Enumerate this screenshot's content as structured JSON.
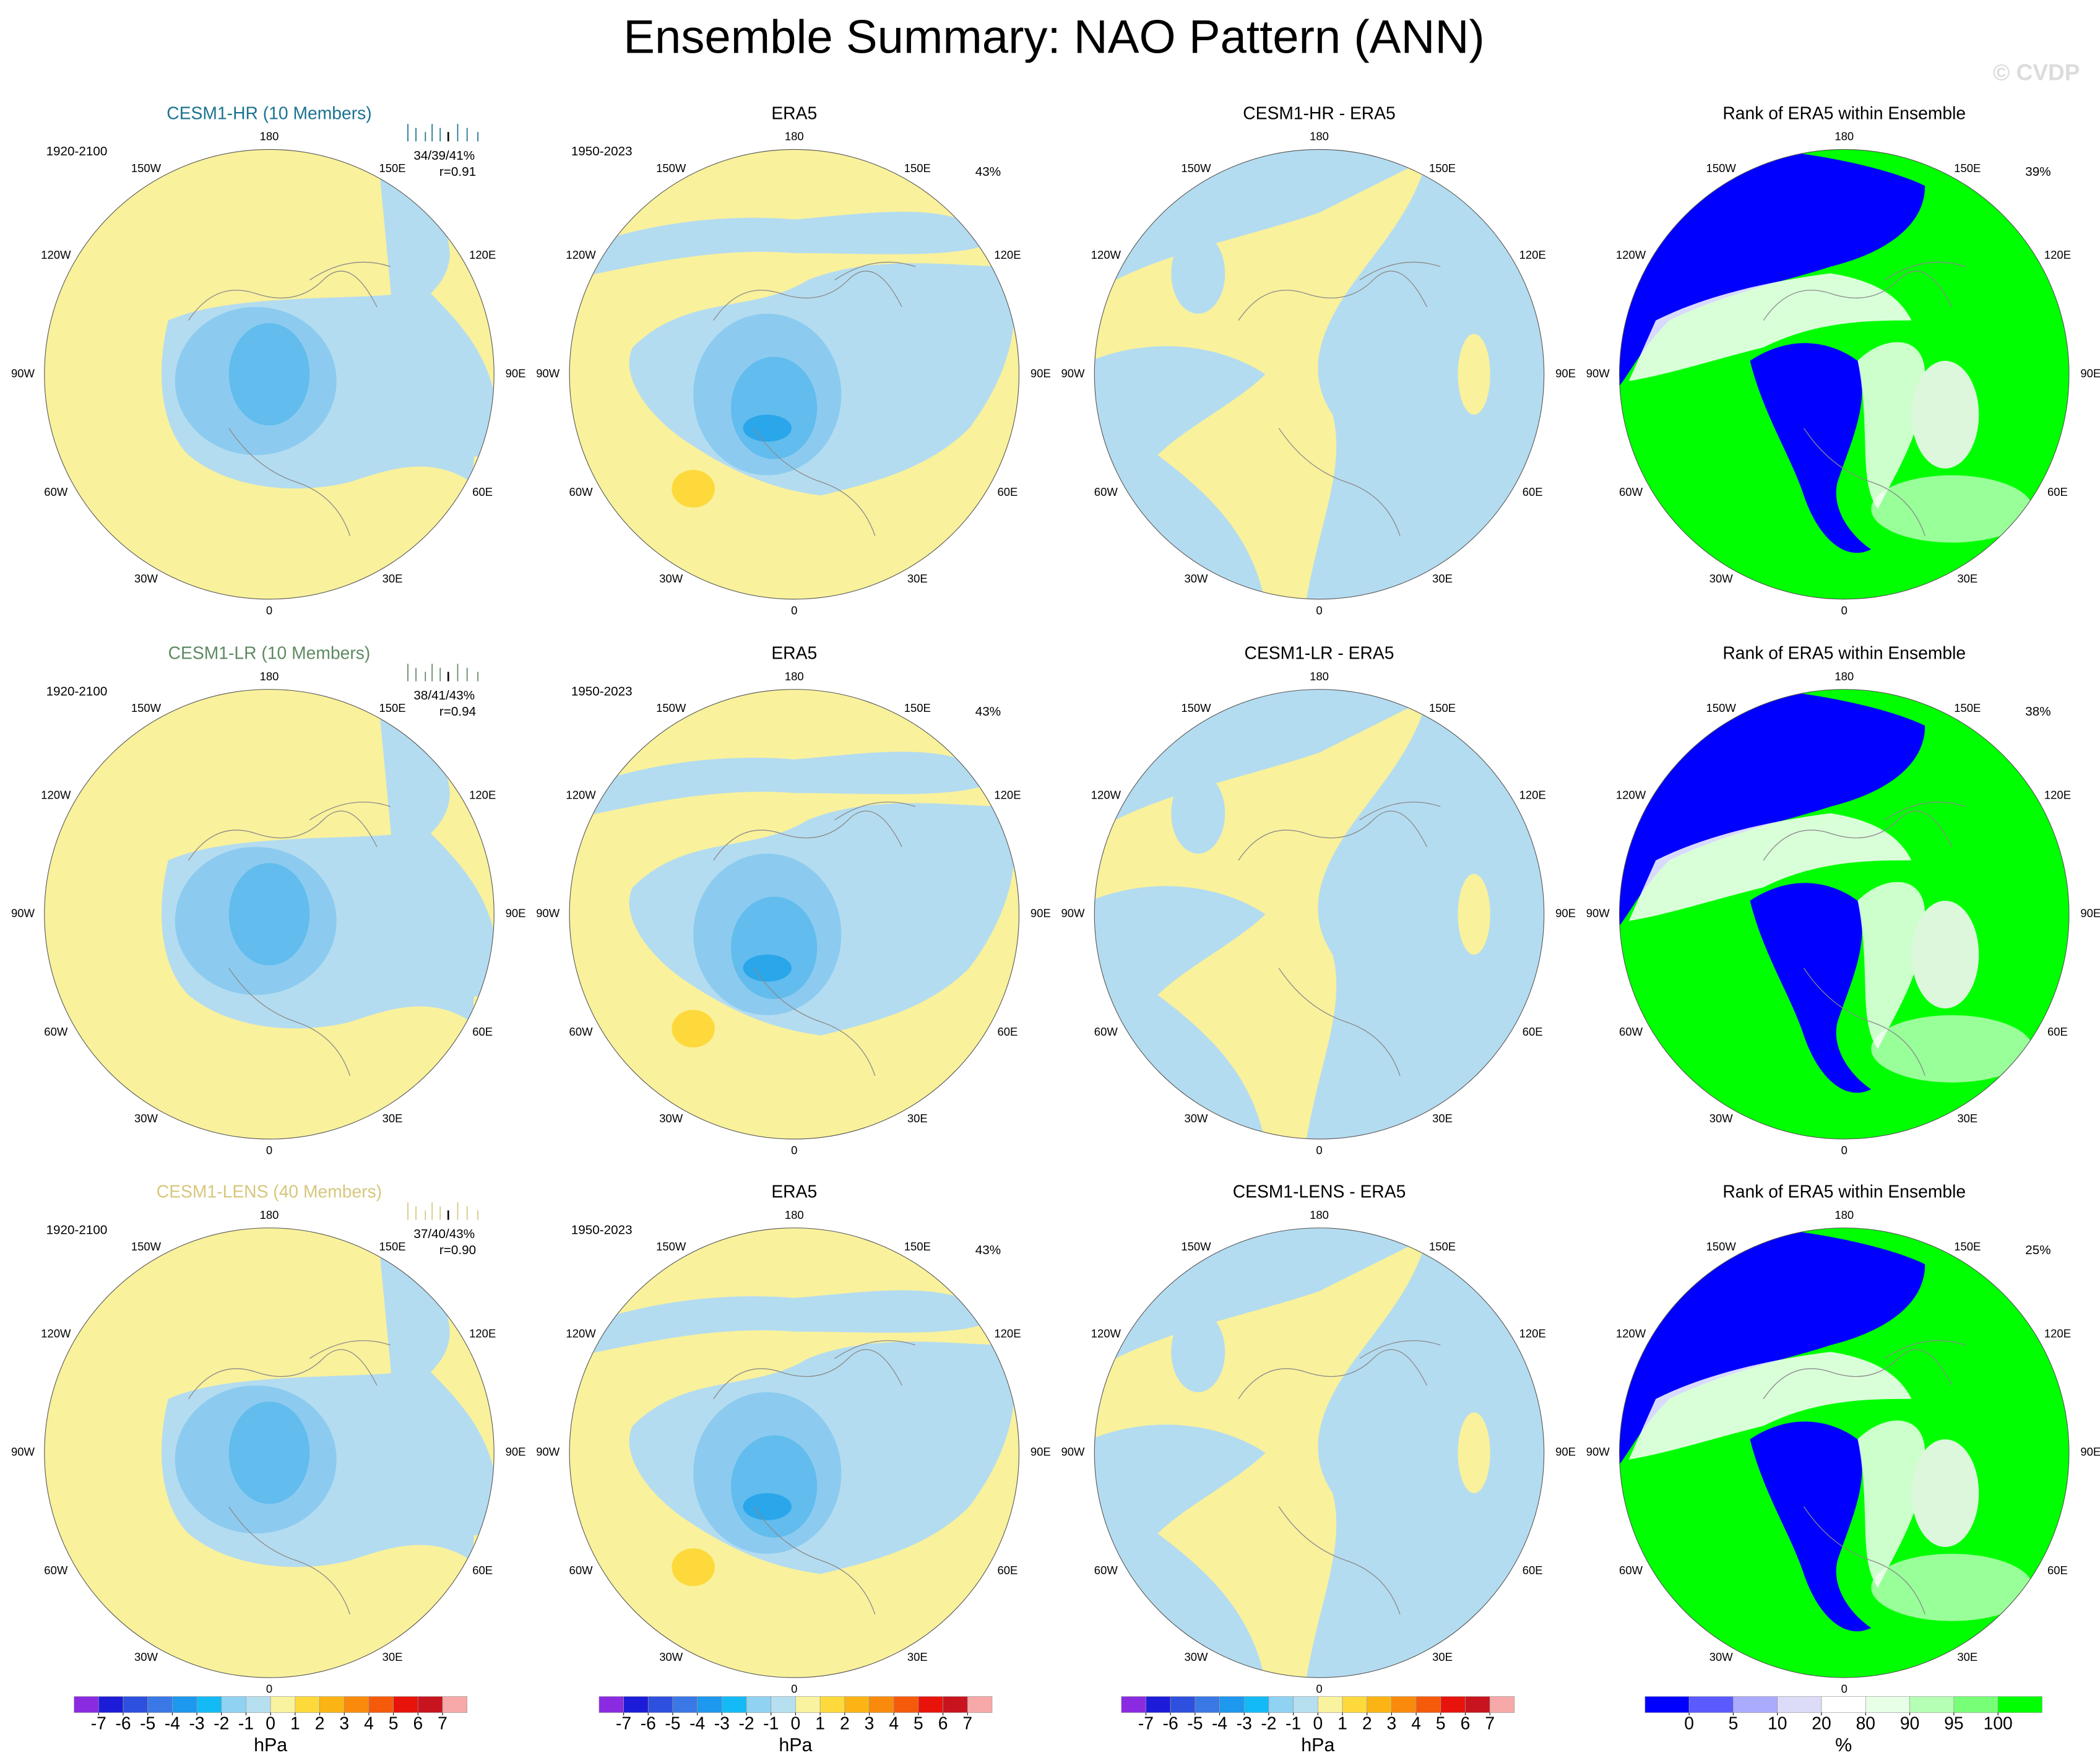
{
  "title": "Ensemble Summary: NAO Pattern (ANN)",
  "watermark": "© CVDP",
  "lon_labels": [
    "180",
    "150E",
    "120E",
    "90E",
    "60E",
    "30E",
    "0",
    "30W",
    "60W",
    "90W",
    "120W",
    "150W"
  ],
  "rows": [
    {
      "ensemble": {
        "title": "CESM1-HR (10 Members)",
        "color": "#1b7390",
        "period": "1920-2100",
        "stats": "34/39/41%",
        "r": "r=0.91"
      },
      "obs": {
        "title": "ERA5",
        "period": "1950-2023",
        "pct": "43%"
      },
      "diff": {
        "title": "CESM1-HR - ERA5"
      },
      "rank": {
        "title": "Rank of ERA5 within Ensemble",
        "pct": "39%"
      }
    },
    {
      "ensemble": {
        "title": "CESM1-LR (10 Members)",
        "color": "#5f8a63",
        "period": "1920-2100",
        "stats": "38/41/43%",
        "r": "r=0.94"
      },
      "obs": {
        "title": "ERA5",
        "period": "1950-2023",
        "pct": "43%"
      },
      "diff": {
        "title": "CESM1-LR - ERA5"
      },
      "rank": {
        "title": "Rank of ERA5 within Ensemble",
        "pct": "38%"
      }
    },
    {
      "ensemble": {
        "title": "CESM1-LENS (40 Members)",
        "color": "#d6c77e",
        "period": "1920-2100",
        "stats": "37/40/43%",
        "r": "r=0.90"
      },
      "obs": {
        "title": "ERA5",
        "period": "1950-2023",
        "pct": "43%"
      },
      "diff": {
        "title": "CESM1-LENS - ERA5"
      },
      "rank": {
        "title": "Rank of ERA5 within Ensemble",
        "pct": "25%"
      }
    }
  ],
  "colorbars": [
    {
      "unit": "hPa",
      "levels": [
        -7,
        -6,
        -5,
        -4,
        -3,
        -2,
        -1,
        0,
        1,
        2,
        3,
        4,
        5,
        6,
        7
      ],
      "colors": [
        "#8a2be2",
        "#1c1cd8",
        "#2e50de",
        "#3a78e6",
        "#1e98ee",
        "#14baf5",
        "#8fd2f2",
        "#b6dff0",
        "#f9f3a0",
        "#fdd93c",
        "#fbb414",
        "#f98a0c",
        "#f55a0a",
        "#e8140c",
        "#c8141e",
        "#f7a8a8"
      ]
    },
    {
      "unit": "hPa",
      "levels": [
        -7,
        -6,
        -5,
        -4,
        -3,
        -2,
        -1,
        0,
        1,
        2,
        3,
        4,
        5,
        6,
        7
      ],
      "colors": [
        "#8a2be2",
        "#1c1cd8",
        "#2e50de",
        "#3a78e6",
        "#1e98ee",
        "#14baf5",
        "#8fd2f2",
        "#b6dff0",
        "#f9f3a0",
        "#fdd93c",
        "#fbb414",
        "#f98a0c",
        "#f55a0a",
        "#e8140c",
        "#c8141e",
        "#f7a8a8"
      ]
    },
    {
      "unit": "hPa",
      "levels": [
        -7,
        -6,
        -5,
        -4,
        -3,
        -2,
        -1,
        0,
        1,
        2,
        3,
        4,
        5,
        6,
        7
      ],
      "colors": [
        "#8a2be2",
        "#1c1cd8",
        "#2e50de",
        "#3a78e6",
        "#1e98ee",
        "#14baf5",
        "#8fd2f2",
        "#b6dff0",
        "#f9f3a0",
        "#fdd93c",
        "#fbb414",
        "#f98a0c",
        "#f55a0a",
        "#e8140c",
        "#c8141e",
        "#f7a8a8"
      ]
    },
    {
      "unit": "%",
      "levels": [
        0,
        5,
        10,
        20,
        80,
        90,
        95,
        100
      ],
      "colors": [
        "#0000ff",
        "#5a5aff",
        "#aaaaff",
        "#dcdcf8",
        "#ffffff",
        "#e6ffe6",
        "#b4ffb4",
        "#78ff78",
        "#00ff00"
      ]
    }
  ]
}
